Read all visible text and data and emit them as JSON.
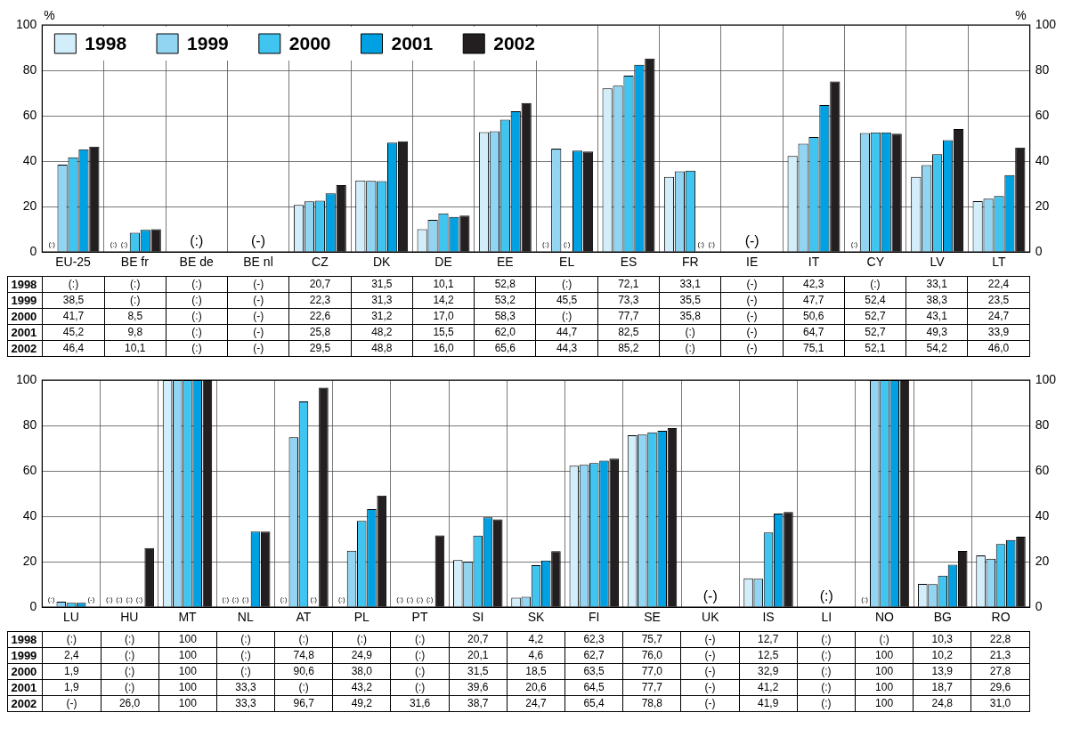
{
  "chart_data": [
    {
      "type": "bar",
      "categories": [
        "EU-25",
        "BE fr",
        "BE de",
        "BE nl",
        "CZ",
        "DK",
        "DE",
        "EE",
        "EL",
        "ES",
        "FR",
        "IE",
        "IT",
        "CY",
        "LV",
        "LT"
      ],
      "series": [
        {
          "name": "1998",
          "color": "#d2eefa",
          "values": [
            null,
            null,
            null,
            null,
            20.7,
            31.5,
            10.1,
            52.8,
            null,
            72.1,
            33.1,
            null,
            42.3,
            null,
            33.1,
            22.4
          ],
          "value_labels": [
            "(:)",
            "(:)",
            "(:)",
            "(-)",
            "20,7",
            "31,5",
            "10,1",
            "52,8",
            "(:)",
            "72,1",
            "33,1",
            "(-)",
            "42,3",
            "(:)",
            "33,1",
            "22,4"
          ]
        },
        {
          "name": "1999",
          "color": "#92d5f3",
          "values": [
            38.5,
            null,
            null,
            null,
            22.3,
            31.3,
            14.2,
            53.2,
            45.5,
            73.3,
            35.5,
            null,
            47.7,
            52.4,
            38.3,
            23.5
          ],
          "value_labels": [
            "38,5",
            "(:)",
            "(:)",
            "(-)",
            "22,3",
            "31,3",
            "14,2",
            "53,2",
            "45,5",
            "73,3",
            "35,5",
            "(-)",
            "47,7",
            "52,4",
            "38,3",
            "23,5"
          ]
        },
        {
          "name": "2000",
          "color": "#40c4f0",
          "values": [
            41.7,
            8.5,
            null,
            null,
            22.6,
            31.2,
            17.0,
            58.3,
            null,
            77.7,
            35.8,
            null,
            50.6,
            52.7,
            43.1,
            24.7
          ],
          "value_labels": [
            "41,7",
            "8,5",
            "(:)",
            "(-)",
            "22,6",
            "31,2",
            "17,0",
            "58,3",
            "(:)",
            "77,7",
            "35,8",
            "(-)",
            "50,6",
            "52,7",
            "43,1",
            "24,7"
          ]
        },
        {
          "name": "2001",
          "color": "#00a1e2",
          "values": [
            45.2,
            9.8,
            null,
            null,
            25.8,
            48.2,
            15.5,
            62.0,
            44.7,
            82.5,
            null,
            null,
            64.7,
            52.7,
            49.3,
            33.9
          ],
          "value_labels": [
            "45,2",
            "9,8",
            "(:)",
            "(-)",
            "25,8",
            "48,2",
            "15,5",
            "62,0",
            "44,7",
            "82,5",
            "(:)",
            "(-)",
            "64,7",
            "52,7",
            "49,3",
            "33,9"
          ]
        },
        {
          "name": "2002",
          "color": "#231f20",
          "values": [
            46.4,
            10.1,
            null,
            null,
            29.5,
            48.8,
            16.0,
            65.6,
            44.3,
            85.2,
            null,
            null,
            75.1,
            52.1,
            54.2,
            46.0
          ],
          "value_labels": [
            "46,4",
            "10,1",
            "(:)",
            "(-)",
            "29,5",
            "48,8",
            "16,0",
            "65,6",
            "44,3",
            "85,2",
            "(:)",
            "(-)",
            "75,1",
            "52,1",
            "54,2",
            "46,0"
          ]
        }
      ],
      "ylim": [
        0,
        100
      ],
      "yticks": [
        0,
        20,
        40,
        60,
        80,
        100
      ],
      "y2lim": [
        0,
        100
      ],
      "y2ticks": [
        0,
        20,
        40,
        60,
        80,
        100
      ],
      "ylabel": "%",
      "y2label": "%",
      "grid": true,
      "legend": "top left"
    },
    {
      "type": "bar",
      "categories": [
        "LU",
        "HU",
        "MT",
        "NL",
        "AT",
        "PL",
        "PT",
        "SI",
        "SK",
        "FI",
        "SE",
        "UK",
        "IS",
        "LI",
        "NO",
        "BG",
        "RO"
      ],
      "series": [
        {
          "color": "#d2eefa",
          "values": [
            null,
            null,
            100,
            null,
            null,
            null,
            null,
            20.7,
            4.2,
            62.3,
            75.7,
            null,
            12.7,
            null,
            null,
            10.3,
            22.8
          ],
          "value_labels": [
            "(:)",
            "(:)",
            "100",
            "(:)",
            "(:)",
            "(:)",
            "(:)",
            "20,7",
            "4,2",
            "62,3",
            "75,7",
            "(-)",
            "12,7",
            "(:)",
            "(:)",
            "10,3",
            "22,8"
          ]
        },
        {
          "color": "#92d5f3",
          "values": [
            2.4,
            null,
            100,
            null,
            74.8,
            24.9,
            null,
            20.1,
            4.6,
            62.7,
            76.0,
            null,
            12.5,
            null,
            100,
            10.2,
            21.3
          ],
          "value_labels": [
            "2,4",
            "(:)",
            "100",
            "(:)",
            "74,8",
            "24,9",
            "(:)",
            "20,1",
            "4,6",
            "62,7",
            "76,0",
            "(-)",
            "12,5",
            "(:)",
            "100",
            "10,2",
            "21,3"
          ]
        },
        {
          "color": "#40c4f0",
          "values": [
            1.9,
            null,
            100,
            null,
            90.6,
            38.0,
            null,
            31.5,
            18.5,
            63.5,
            77.0,
            null,
            32.9,
            null,
            100,
            13.9,
            27.8
          ],
          "value_labels": [
            "1,9",
            "(:)",
            "100",
            "(:)",
            "90,6",
            "38,0",
            "(:)",
            "31,5",
            "18,5",
            "63,5",
            "77,0",
            "(-)",
            "32,9",
            "(:)",
            "100",
            "13,9",
            "27,8"
          ]
        },
        {
          "color": "#00a1e2",
          "values": [
            1.9,
            null,
            100,
            33.3,
            null,
            43.2,
            null,
            39.6,
            20.6,
            64.5,
            77.7,
            null,
            41.2,
            null,
            100,
            18.7,
            29.6
          ],
          "value_labels": [
            "1,9",
            "(:)",
            "100",
            "33,3",
            "(:)",
            "43,2",
            "(:)",
            "39,6",
            "20,6",
            "64,5",
            "77,7",
            "(-)",
            "41,2",
            "(:)",
            "100",
            "18,7",
            "29,6"
          ]
        },
        {
          "color": "#231f20",
          "values": [
            null,
            26.0,
            100,
            33.3,
            96.7,
            49.2,
            31.6,
            38.7,
            24.7,
            65.4,
            78.8,
            null,
            41.9,
            null,
            100,
            24.8,
            31.0
          ],
          "value_labels": [
            "(-)",
            "26,0",
            "100",
            "33,3",
            "96,7",
            "49,2",
            "31,6",
            "38,7",
            "24,7",
            "65,4",
            "78,8",
            "(-)",
            "41,9",
            "(:)",
            "100",
            "24,8",
            "31,0"
          ]
        }
      ],
      "ylim": [
        0,
        100
      ],
      "yticks": [
        0,
        20,
        40,
        60,
        80,
        100
      ],
      "y2lim": [
        0,
        100
      ],
      "y2ticks": [
        0,
        20,
        40,
        60,
        80,
        100
      ],
      "grid": true
    }
  ]
}
